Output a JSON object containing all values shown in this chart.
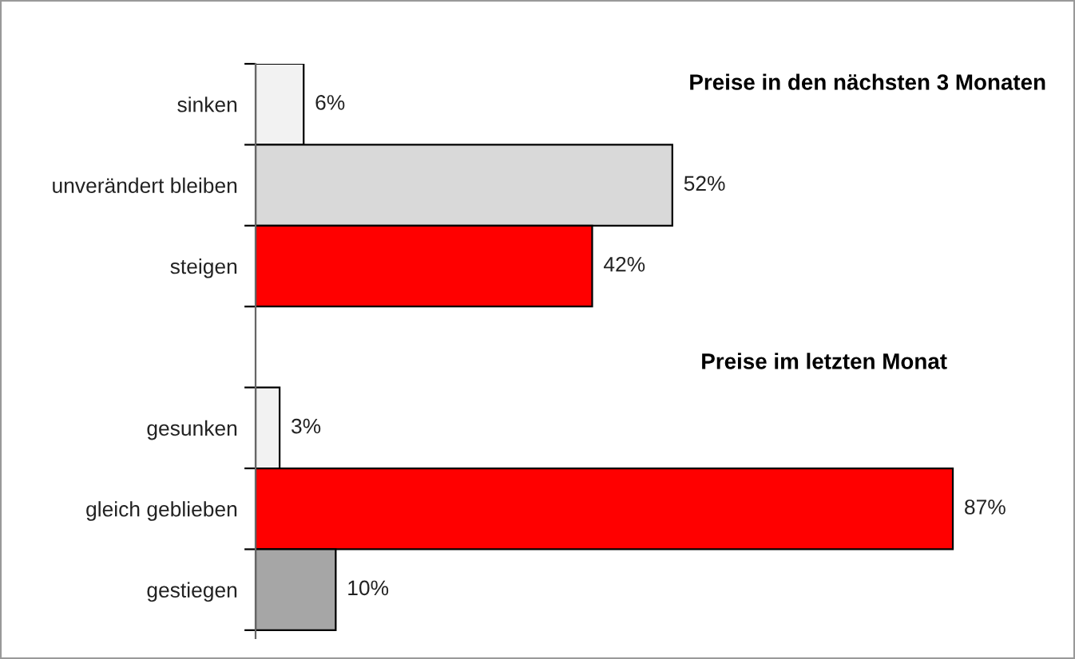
{
  "chart_data": {
    "type": "bar",
    "orientation": "horizontal",
    "categories": [
      "sinken",
      "unverändert bleiben",
      "steigen",
      null,
      "gesunken",
      "gleich geblieben",
      "gestiegen"
    ],
    "values": [
      6,
      52,
      42,
      null,
      3,
      87,
      10
    ],
    "colors": [
      "#f2f2f2",
      "#d9d9d9",
      "#ff0000",
      "#ffffff",
      "#f2f2f2",
      "#ff0000",
      "#a6a6a6"
    ],
    "value_labels": [
      "6%",
      "52%",
      "42%",
      null,
      "3%",
      "87%",
      "10%"
    ],
    "annotations": [
      "Preise in den nächsten 3 Monaten",
      "Preise im letzten Monat"
    ],
    "tick_labels": "y",
    "grid": false
  }
}
